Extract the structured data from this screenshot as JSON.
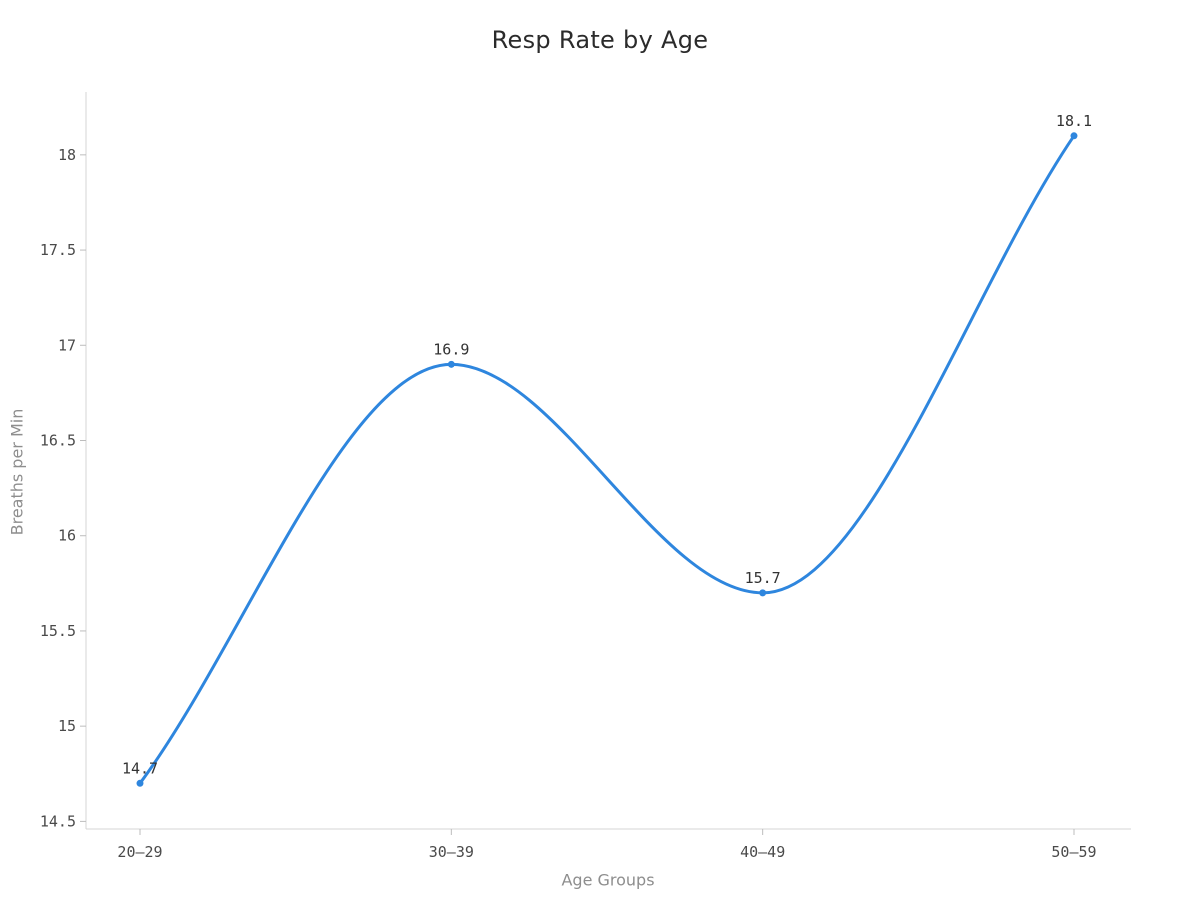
{
  "chart_data": {
    "type": "line",
    "smooth": true,
    "title": "Resp Rate by Age",
    "xlabel": "Age Groups",
    "ylabel": "Breaths per Min",
    "categories": [
      "20–29",
      "30–39",
      "40–49",
      "50–59"
    ],
    "values": [
      14.7,
      16.9,
      15.7,
      18.1
    ],
    "point_labels": [
      "14.7",
      "16.9",
      "15.7",
      "18.1"
    ],
    "ytick_values": [
      14.5,
      15,
      15.5,
      16,
      16.5,
      17,
      17.5,
      18
    ],
    "ytick_labels": [
      "14.5",
      "15",
      "15.5",
      "16",
      "16.5",
      "17",
      "17.5",
      "18"
    ],
    "ylim": [
      14.46,
      18.33
    ],
    "grid": false,
    "legend_position": "none",
    "colors": {
      "line": "#2e86de",
      "marker": "#2e86de",
      "axis_line": "#d4d4d4",
      "tick_mark": "#bdbdbd",
      "tick_text": "#4a4a4a",
      "data_label_text": "#333333",
      "axis_title_text": "#8e8e8e",
      "title_text": "#2b2b2b",
      "background": "#ffffff"
    }
  }
}
